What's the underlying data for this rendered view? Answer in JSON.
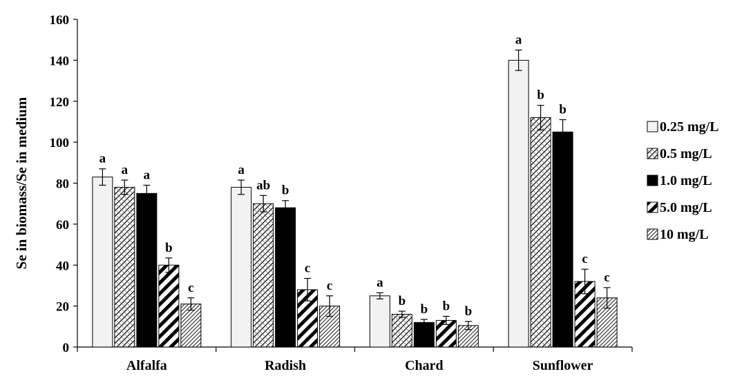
{
  "chart_data": {
    "type": "bar",
    "ylabel": "Se  in biomass/Se in medium",
    "xlabel": "",
    "ylim": [
      0,
      160
    ],
    "yticks": [
      0,
      20,
      40,
      60,
      80,
      100,
      120,
      140,
      160
    ],
    "categories": [
      "Alfalfa",
      "Radish",
      "Chard",
      "Sunflower"
    ],
    "legend_position": "right",
    "grid": false,
    "series": [
      {
        "name": "0.25 mg/L",
        "pattern": "light-fill",
        "values": [
          83,
          78,
          25,
          140
        ],
        "errors": [
          4,
          3.5,
          1.5,
          5
        ],
        "labels": [
          "a",
          "a",
          "a",
          "a"
        ]
      },
      {
        "name": "0.5 mg/L",
        "pattern": "crosshatch",
        "values": [
          78,
          70,
          16,
          112
        ],
        "errors": [
          3.5,
          4,
          1.5,
          6
        ],
        "labels": [
          "a",
          "ab",
          "b",
          "b"
        ]
      },
      {
        "name": "1.0 mg/L",
        "pattern": "solid-black",
        "values": [
          75,
          68,
          12,
          105
        ],
        "errors": [
          4,
          3.5,
          1.5,
          6
        ],
        "labels": [
          "a",
          "b",
          "b",
          "b"
        ]
      },
      {
        "name": "5.0 mg/L",
        "pattern": "wide-diagonal",
        "values": [
          40,
          28,
          13,
          32
        ],
        "errors": [
          3.5,
          5.5,
          2,
          6
        ],
        "labels": [
          "b",
          "c",
          "b",
          "c"
        ]
      },
      {
        "name": "10 mg/L",
        "pattern": "dense-diagonal",
        "values": [
          21,
          20,
          10.5,
          24
        ],
        "errors": [
          3,
          5,
          2,
          5
        ],
        "labels": [
          "c",
          "c",
          "b",
          "c"
        ]
      }
    ]
  }
}
